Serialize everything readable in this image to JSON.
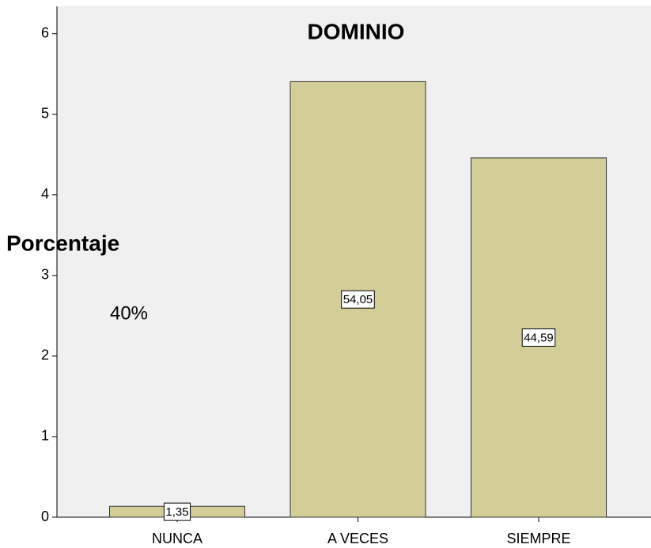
{
  "chart_data": {
    "type": "bar",
    "title": "DOMINIO",
    "y_label": "Porcentaje",
    "annotation": "40%",
    "categories": [
      "NUNCA",
      "A VECES",
      "SIEMPRE"
    ],
    "values": [
      0.135,
      5.405,
      4.459
    ],
    "value_labels": [
      "1,35",
      "54,05",
      "44,59"
    ],
    "color": "#d3ce97",
    "ylim": [
      0,
      6.34
    ],
    "yticks": [
      0,
      1,
      2,
      3,
      4,
      5,
      6
    ],
    "grid": false
  }
}
